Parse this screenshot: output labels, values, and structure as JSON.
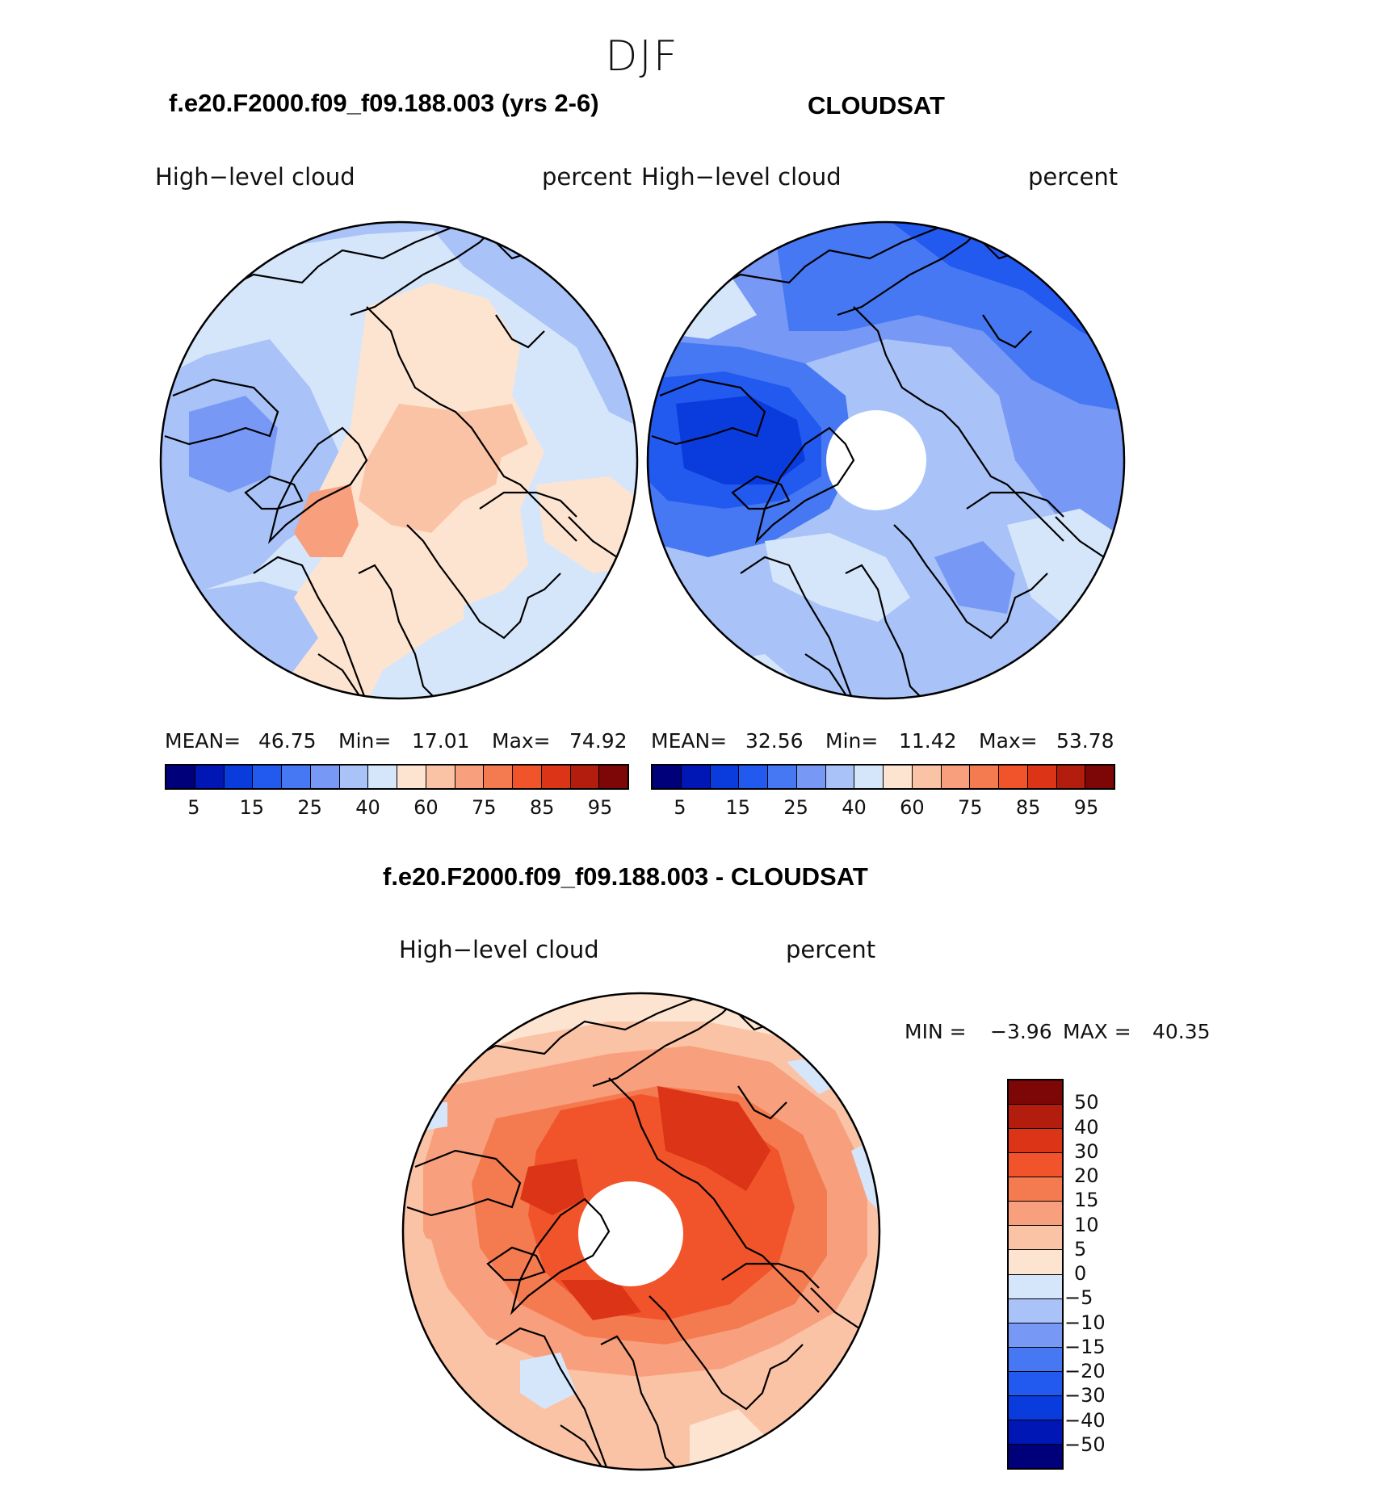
{
  "season_title": "DJF",
  "panels": [
    {
      "case_title": "f.e20.F2000.f09_f09.188.003 (yrs 2-6)",
      "variable": "High−level cloud",
      "units": "percent",
      "stats": {
        "mean_label": "MEAN=",
        "mean": "46.75",
        "min_label": "Min=",
        "min": "17.01",
        "max_label": "Max=",
        "max": "74.92"
      }
    },
    {
      "case_title": "CLOUDSAT",
      "variable": "High−level cloud",
      "units": "percent",
      "stats": {
        "mean_label": "MEAN=",
        "mean": "32.56",
        "min_label": "Min=",
        "min": "11.42",
        "max_label": "Max=",
        "max": "53.78"
      }
    }
  ],
  "diff_panel": {
    "case_title": "f.e20.F2000.f09_f09.188.003 - CLOUDSAT",
    "variable": "High−level cloud",
    "units": "percent",
    "min_label": "MIN =",
    "min": "−3.96",
    "max_label": "MAX =",
    "max": "40.35"
  },
  "abs_colorbar": {
    "colors": [
      "#00007a",
      "#0016b5",
      "#0a3bdc",
      "#2259ef",
      "#4678f3",
      "#7799f5",
      "#a9c2f7",
      "#d5e6fb",
      "#fde4d1",
      "#fbc3a6",
      "#f8a07d",
      "#f47a50",
      "#f1542b",
      "#dc3416",
      "#b31d0e",
      "#7d0707"
    ],
    "tick_labels": [
      "5",
      "15",
      "25",
      "40",
      "60",
      "75",
      "85",
      "95"
    ]
  },
  "diff_colorbar": {
    "colors": [
      "#00007a",
      "#0016b5",
      "#0a3bdc",
      "#2259ef",
      "#4678f3",
      "#7799f5",
      "#a9c2f7",
      "#d5e6fb",
      "#fde4d1",
      "#fbc3a6",
      "#f8a07d",
      "#f47a50",
      "#f1542b",
      "#dc3416",
      "#b31d0e",
      "#7d0707"
    ],
    "tick_labels": [
      "50",
      "40",
      "30",
      "20",
      "15",
      "10",
      "5",
      "0",
      "−5",
      "−10",
      "−15",
      "−20",
      "−30",
      "−40",
      "−50"
    ]
  },
  "chart_data": {
    "type": "heatmap",
    "projection": "north polar stereographic",
    "panels": [
      {
        "case": "f.e20.F2000.f09_f09.188.003 (yrs 2-6)",
        "mean": 46.75,
        "min": 17.01,
        "max": 74.92,
        "contour_levels": [
          5,
          10,
          15,
          20,
          25,
          30,
          40,
          50,
          60,
          65,
          75,
          80,
          85,
          90,
          95
        ]
      },
      {
        "case": "CLOUDSAT",
        "mean": 32.56,
        "min": 11.42,
        "max": 53.78,
        "contour_levels": [
          5,
          10,
          15,
          20,
          25,
          30,
          40,
          50,
          60,
          65,
          75,
          80,
          85,
          90,
          95
        ]
      },
      {
        "case": "f.e20.F2000.f09_f09.188.003 - CLOUDSAT",
        "min": -3.96,
        "max": 40.35,
        "contour_levels": [
          -50,
          -40,
          -30,
          -20,
          -15,
          -10,
          -5,
          0,
          5,
          10,
          15,
          20,
          30,
          40,
          50
        ]
      }
    ]
  }
}
